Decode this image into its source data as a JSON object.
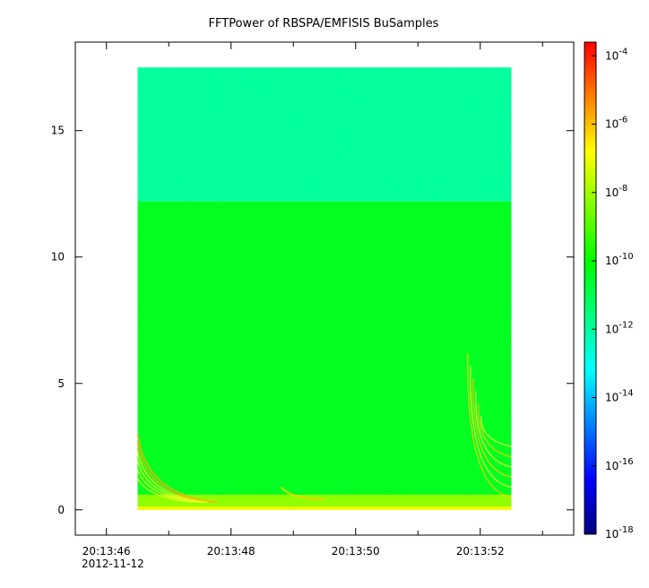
{
  "chart_data": {
    "type": "heatmap",
    "title": "FFTPower of RBSPA/EMFISIS  BuSamples",
    "xlabel": "",
    "ylabel": "",
    "date_label": "2012-11-12",
    "x_ticks": [
      "20:13:46",
      "20:13:48",
      "20:13:50",
      "20:13:52"
    ],
    "x_tick_seconds": [
      46,
      48,
      50,
      52
    ],
    "x_minor_seconds": [
      47,
      49,
      51,
      53
    ],
    "xlim_seconds": [
      45.5,
      53.5
    ],
    "data_xrange_seconds": [
      46.5,
      52.5
    ],
    "y_ticks": [
      0,
      5,
      10,
      15
    ],
    "ylim": [
      -1,
      18.5
    ],
    "data_yrange": [
      0,
      17.5
    ],
    "z_scale": "log",
    "zlim_exponents": [
      -18,
      -3.6
    ],
    "colorbar_exponents": [
      -4,
      -6,
      -8,
      -10,
      -12,
      -14,
      -16,
      -18
    ],
    "colorbar_labels": [
      "10-4",
      "10-6",
      "10-8",
      "10-10",
      "10-12",
      "10-14",
      "10-16",
      "10-18"
    ],
    "colormap": [
      "#00007f",
      "#0000ff",
      "#007fff",
      "#00ffff",
      "#00ff7f",
      "#00ff00",
      "#7fff00",
      "#ffff00",
      "#ff7f00",
      "#ff0000"
    ],
    "grid": false,
    "regions": [
      {
        "y": [
          12.2,
          17.5
        ],
        "z_exponent": -12.0
      },
      {
        "y": [
          0,
          12.2
        ],
        "z_exponent": -10.4
      },
      {
        "y": [
          0,
          0.6
        ],
        "z_exponent": -8.2
      },
      {
        "y": [
          0,
          0.12
        ],
        "z_exponent": -6.8
      }
    ],
    "features": [
      {
        "name": "low-frequency dispersive whistler traces",
        "x_seconds": [
          46.5,
          47.8
        ],
        "y": [
          0.3,
          3.0
        ]
      },
      {
        "name": "rising dispersive traces",
        "x_seconds": [
          51.8,
          52.5
        ],
        "y": [
          0.5,
          6.2
        ]
      }
    ]
  }
}
